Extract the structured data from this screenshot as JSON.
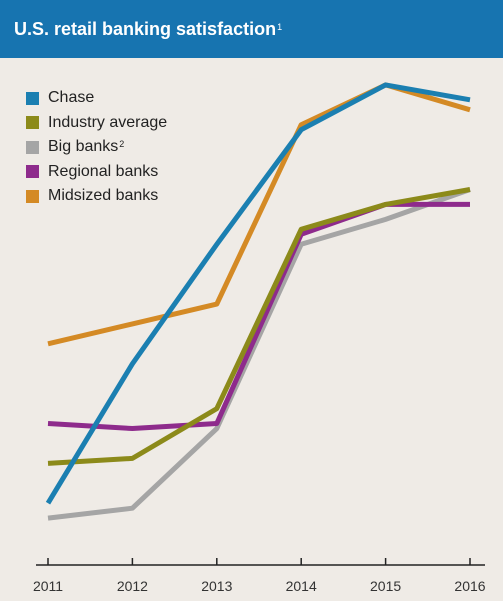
{
  "header": {
    "title": "U.S. retail banking satisfaction",
    "title_note": "1"
  },
  "colors": {
    "header_bg": "#1774b0",
    "background": "#efebe6",
    "Chase": "#1b7fb1",
    "Industry average": "#8c8a1a",
    "Big banks": "#a5a5a5",
    "Regional banks": "#8e2b8c",
    "Midsized banks": "#d48a25"
  },
  "legend": [
    {
      "label": "Chase",
      "note": ""
    },
    {
      "label": "Industry average",
      "note": ""
    },
    {
      "label": "Big banks",
      "note": "2"
    },
    {
      "label": "Regional banks",
      "note": ""
    },
    {
      "label": "Midsized banks",
      "note": ""
    }
  ],
  "chart_data": {
    "type": "line",
    "title": "U.S. retail banking satisfaction",
    "xlabel": "",
    "ylabel": "",
    "x": [
      "2011",
      "2012",
      "2013",
      "2014",
      "2015",
      "2016"
    ],
    "ylim": [
      0,
      100
    ],
    "y_axis_visible": false,
    "grid": false,
    "legend_position": "top-left",
    "series": [
      {
        "name": "Chase",
        "values": [
          11,
          39,
          63,
          86,
          95,
          92
        ]
      },
      {
        "name": "Industry average",
        "values": [
          19,
          20,
          30,
          66,
          71,
          74
        ]
      },
      {
        "name": "Big banks",
        "values": [
          8,
          10,
          26,
          63,
          68,
          74
        ]
      },
      {
        "name": "Regional banks",
        "values": [
          27,
          26,
          27,
          65,
          71,
          71
        ]
      },
      {
        "name": "Midsized banks",
        "values": [
          43,
          47,
          51,
          87,
          95,
          90
        ]
      }
    ]
  }
}
